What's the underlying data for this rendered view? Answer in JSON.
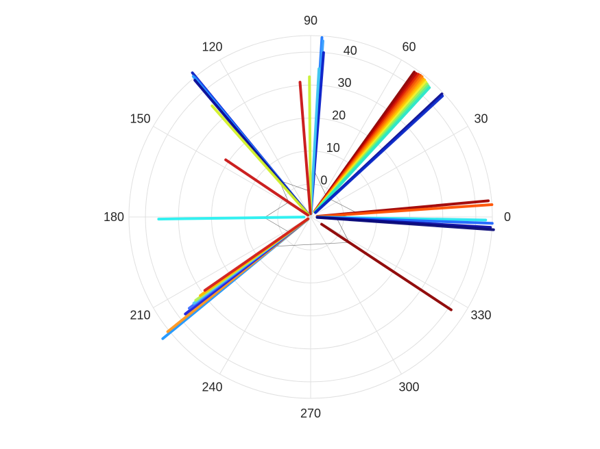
{
  "chart_data": {
    "type": "polar-line",
    "title": "",
    "theta_unit": "degrees",
    "r_range": [
      -10,
      45
    ],
    "r_ticks": [
      0,
      10,
      20,
      30,
      40
    ],
    "r_tick_labels": [
      "0",
      "10",
      "20",
      "30",
      "40"
    ],
    "r_tick_label_angle": 80,
    "theta_ticks": [
      0,
      30,
      60,
      90,
      120,
      150,
      180,
      210,
      240,
      270,
      300,
      330
    ],
    "theta_tick_labels": [
      "0",
      "30",
      "60",
      "90",
      "120",
      "150",
      "180",
      "210",
      "240",
      "270",
      "300",
      "330"
    ],
    "grid": true,
    "rays": [
      {
        "angle": 86.4,
        "r0": -9,
        "r1": 44.5,
        "color": "#1e78ff"
      },
      {
        "angle": 86.0,
        "r0": -9,
        "r1": 43.5,
        "color": "#3aa0ff"
      },
      {
        "angle": 85.5,
        "r0": -9,
        "r1": 40.0,
        "color": "#0a1ec8"
      },
      {
        "angle": 86.8,
        "r0": -9,
        "r1": 35.0,
        "color": "#40c8f0"
      },
      {
        "angle": 90.5,
        "r0": -9,
        "r1": 32.5,
        "color": "#c8f032"
      },
      {
        "angle": 94.5,
        "r0": -9,
        "r1": 31.0,
        "color": "#c81414"
      },
      {
        "angle": 54.5,
        "r0": -8,
        "r1": 44.0,
        "color": "#8c0000"
      },
      {
        "angle": 53.7,
        "r0": -8,
        "r1": 44.0,
        "color": "#b40000"
      },
      {
        "angle": 53.0,
        "r0": -8,
        "r1": 44.2,
        "color": "#dc1e00"
      },
      {
        "angle": 52.3,
        "r0": -8,
        "r1": 44.3,
        "color": "#f05000"
      },
      {
        "angle": 51.6,
        "r0": -8,
        "r1": 44.3,
        "color": "#ff7800"
      },
      {
        "angle": 50.9,
        "r0": -8,
        "r1": 44.0,
        "color": "#ffa000"
      },
      {
        "angle": 50.3,
        "r0": -8,
        "r1": 44.0,
        "color": "#ffc800"
      },
      {
        "angle": 49.6,
        "r0": -8,
        "r1": 43.8,
        "color": "#f0f028"
      },
      {
        "angle": 48.9,
        "r0": -8,
        "r1": 43.6,
        "color": "#a0f050"
      },
      {
        "angle": 48.2,
        "r0": -8,
        "r1": 43.4,
        "color": "#5af08c"
      },
      {
        "angle": 47.5,
        "r0": -8,
        "r1": 43.2,
        "color": "#28e6c8"
      },
      {
        "angle": 43.2,
        "r0": -8,
        "r1": 44.5,
        "color": "#0a0a8c"
      },
      {
        "angle": 42.6,
        "r0": -8,
        "r1": 44.2,
        "color": "#0a28c8"
      },
      {
        "angle": 5.2,
        "r0": -8,
        "r1": 44.0,
        "color": "#a00000"
      },
      {
        "angle": 3.9,
        "r0": -8,
        "r1": 45.0,
        "color": "#ff5000"
      },
      {
        "angle": -1.0,
        "r0": -8,
        "r1": 43.0,
        "color": "#28e6f0"
      },
      {
        "angle": -2.0,
        "r0": -8,
        "r1": 45.0,
        "color": "#1e64ff"
      },
      {
        "angle": -3.3,
        "r0": -8,
        "r1": 44.5,
        "color": "#0a0aa0"
      },
      {
        "angle": -4.0,
        "r0": -8,
        "r1": 45.5,
        "color": "#0a0a78"
      },
      {
        "angle": -33.5,
        "r0": -6,
        "r1": 41.0,
        "color": "#8c0000"
      },
      {
        "angle": 129.3,
        "r0": -9,
        "r1": 46.5,
        "color": "#0a1ebe"
      },
      {
        "angle": 129.5,
        "r0": -9,
        "r1": 44.8,
        "color": "#1e50ff"
      },
      {
        "angle": 129.8,
        "r0": -9,
        "r1": 45.5,
        "color": "#2896ff"
      },
      {
        "angle": 130.2,
        "r0": -9,
        "r1": 44.3,
        "color": "#0a0a96"
      },
      {
        "angle": 131.5,
        "r0": -9,
        "r1": 35.0,
        "color": "#d2f028"
      },
      {
        "angle": 146.0,
        "r0": -9,
        "r1": 21.0,
        "color": "#c81414"
      },
      {
        "angle": 180.8,
        "r0": -8,
        "r1": 36.0,
        "color": "#28f0f0"
      },
      {
        "angle": 219.5,
        "r0": -9,
        "r1": 48.0,
        "color": "#1e96ff"
      },
      {
        "angle": 218.8,
        "r0": -9,
        "r1": 45.5,
        "color": "#ff961e"
      },
      {
        "angle": 217.8,
        "r0": -9,
        "r1": 38.0,
        "color": "#1e1edc"
      },
      {
        "angle": 217.0,
        "r0": -9,
        "r1": 36.0,
        "color": "#3c6eff"
      },
      {
        "angle": 216.5,
        "r0": -9,
        "r1": 34.0,
        "color": "#50c8f0"
      },
      {
        "angle": 216.0,
        "r0": -9,
        "r1": 33.0,
        "color": "#b4f050"
      },
      {
        "angle": 215.5,
        "r0": -9,
        "r1": 31.0,
        "color": "#ffb400"
      },
      {
        "angle": 214.8,
        "r0": -9,
        "r1": 29.0,
        "color": "#d21e1e"
      }
    ]
  }
}
